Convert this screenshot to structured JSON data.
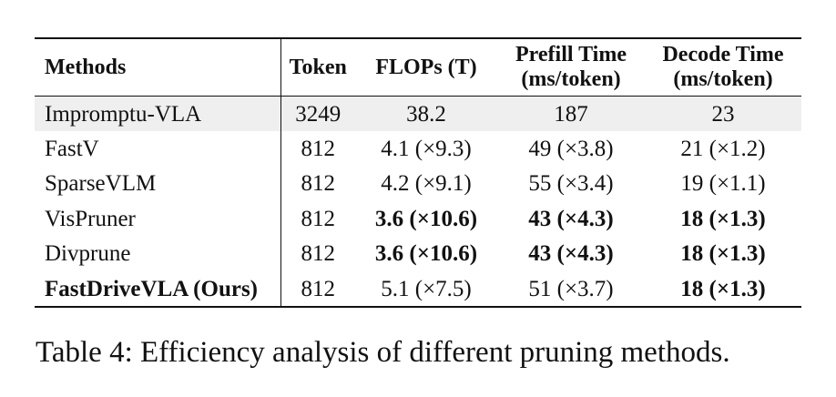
{
  "table": {
    "columns": [
      "Methods",
      "Token",
      "FLOPs (T)",
      "Prefill Time\n(ms/token)",
      "Decode Time\n(ms/token)"
    ],
    "rows": [
      {
        "method": "Impromptu-VLA",
        "token": "3249",
        "flops": "38.2",
        "prefill": "187",
        "decode": "23",
        "bold": []
      },
      {
        "method": "FastV",
        "token": "812",
        "flops": "4.1 (×9.3)",
        "prefill": "49 (×3.8)",
        "decode": "21 (×1.2)",
        "bold": []
      },
      {
        "method": "SparseVLM",
        "token": "812",
        "flops": "4.2 (×9.1)",
        "prefill": "55 (×3.4)",
        "decode": "19 (×1.1)",
        "bold": []
      },
      {
        "method": "VisPruner",
        "token": "812",
        "flops": "3.6 (×10.6)",
        "prefill": "43 (×4.3)",
        "decode": "18 (×1.3)",
        "bold": [
          "flops",
          "prefill",
          "decode"
        ]
      },
      {
        "method": "Divprune",
        "token": "812",
        "flops": "3.6 (×10.6)",
        "prefill": "43 (×4.3)",
        "decode": "18 (×1.3)",
        "bold": [
          "flops",
          "prefill",
          "decode"
        ]
      },
      {
        "method": "FastDriveVLA (Ours)",
        "token": "812",
        "flops": "5.1 (×7.5)",
        "prefill": "51 (×3.7)",
        "decode": "18 (×1.3)",
        "bold": [
          "method",
          "decode"
        ]
      }
    ]
  },
  "caption": "Table 4: Efficiency analysis of different pruning methods."
}
